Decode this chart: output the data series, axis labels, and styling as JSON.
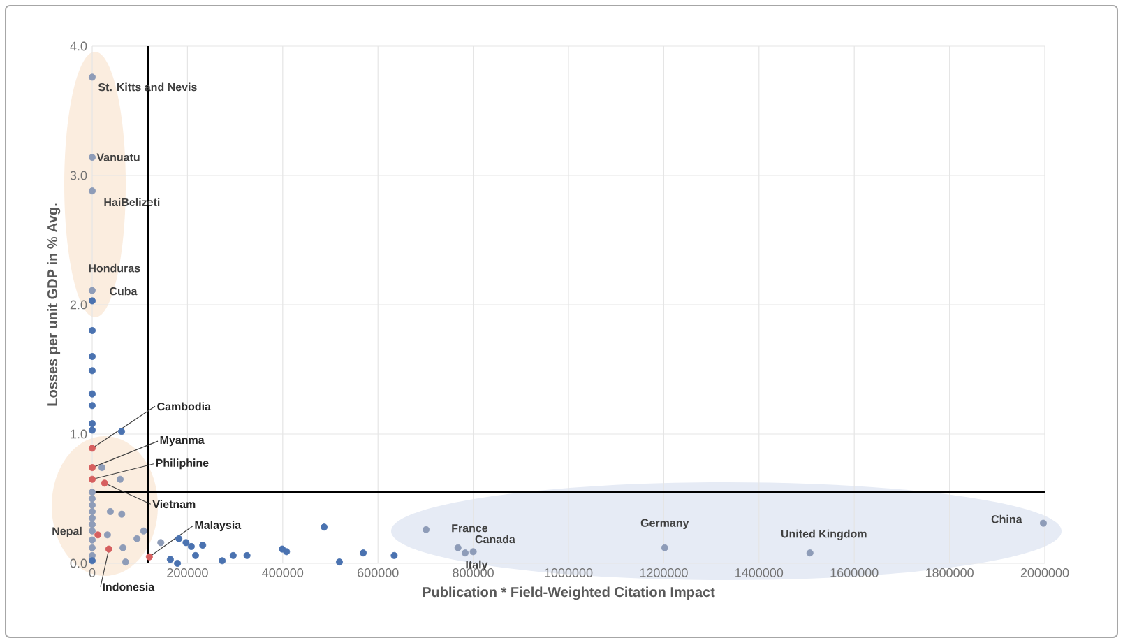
{
  "chart_data": {
    "type": "scatter",
    "xlabel": "Publication * Field-Weighted Citation Impact",
    "ylabel": "Losses per unit GDP in % Avg.",
    "xlim": [
      0,
      2000000
    ],
    "ylim": [
      0,
      4
    ],
    "xticks": [
      0,
      200000,
      400000,
      600000,
      800000,
      1000000,
      1200000,
      1400000,
      1600000,
      1800000,
      2000000
    ],
    "yticks": [
      {
        "value": 0,
        "label": "0.0"
      },
      {
        "value": 1,
        "label": "1.0"
      },
      {
        "value": 2,
        "label": "2.0"
      },
      {
        "value": 3,
        "label": "3.0"
      },
      {
        "value": 4,
        "label": "4.0"
      }
    ],
    "grid": true,
    "marker": "circle",
    "series": [
      {
        "color": "#8e9cb8",
        "x": [
          0,
          0,
          0,
          0,
          20500,
          58600,
          38000,
          62000,
          94000,
          108000,
          64500,
          70000,
          144000,
          32000,
          0,
          0,
          0,
          0,
          0,
          0,
          0,
          0,
          0,
          0,
          701000,
          768000,
          783000,
          800000,
          1202000,
          1507000,
          1997000
        ],
        "values": [
          3.76,
          3.14,
          2.88,
          2.11,
          0.74,
          0.65,
          0.4,
          0.38,
          0.19,
          0.25,
          0.12,
          0.01,
          0.16,
          0.22,
          0.55,
          0.5,
          0.45,
          0.4,
          0.35,
          0.3,
          0.25,
          0.18,
          0.12,
          0.06,
          0.26,
          0.12,
          0.08,
          0.09,
          0.12,
          0.08,
          0.31
        ]
      },
      {
        "color": "#4a72b0",
        "x": [
          0,
          0,
          0,
          0,
          0,
          0,
          0,
          0,
          61600,
          0,
          182000,
          197000,
          208000,
          232000,
          164000,
          179000,
          217000,
          273000,
          296000,
          325000,
          399000,
          408000,
          487000,
          519000,
          569000,
          634000
        ],
        "values": [
          2.03,
          1.8,
          1.6,
          1.49,
          1.31,
          1.22,
          1.08,
          1.03,
          1.02,
          0.02,
          0.19,
          0.16,
          0.13,
          0.14,
          0.03,
          0.0,
          0.06,
          0.02,
          0.06,
          0.06,
          0.11,
          0.09,
          0.28,
          0.01,
          0.08,
          0.06
        ]
      },
      {
        "color": "#d65f5f",
        "x": [
          0,
          0,
          0,
          26000,
          12000,
          35000,
          120000
        ],
        "values": [
          0.89,
          0.74,
          0.65,
          0.62,
          0.22,
          0.11,
          0.05
        ]
      }
    ],
    "ref_lines": [
      {
        "axis": "x",
        "value": 117000,
        "color": "#000000"
      },
      {
        "axis": "y",
        "value": 0.55,
        "color": "#000000"
      }
    ],
    "annotations": [
      {
        "text": "St. Kitts and Nevis",
        "x": 0,
        "y": 3.76
      },
      {
        "text": "Vanuatu",
        "x": 0,
        "y": 3.14
      },
      {
        "text": "HaiBelizeti",
        "x": 0,
        "y": 2.88
      },
      {
        "text": "Honduras",
        "x": 0,
        "y": 2.11
      },
      {
        "text": "Cuba",
        "x": 0,
        "y": 2.03
      },
      {
        "text": "Cambodia",
        "x": 0,
        "y": 0.89
      },
      {
        "text": "Myanma",
        "x": 0,
        "y": 0.74
      },
      {
        "text": "Philiphine",
        "x": 0,
        "y": 0.65
      },
      {
        "text": "Vietnam",
        "x": 26000,
        "y": 0.62
      },
      {
        "text": "Nepal",
        "x": 12000,
        "y": 0.22
      },
      {
        "text": "Indonesia",
        "x": 35000,
        "y": 0.11
      },
      {
        "text": "Malaysia",
        "x": 120000,
        "y": 0.05
      },
      {
        "text": "France",
        "x": 768000,
        "y": 0.12
      },
      {
        "text": "Canada",
        "x": 800000,
        "y": 0.09
      },
      {
        "text": "Italy",
        "x": 783000,
        "y": 0.08
      },
      {
        "text": "Germany",
        "x": 1202000,
        "y": 0.12
      },
      {
        "text": "United Kingdom",
        "x": 1507000,
        "y": 0.08
      },
      {
        "text": "China",
        "x": 1997000,
        "y": 0.31
      }
    ]
  }
}
